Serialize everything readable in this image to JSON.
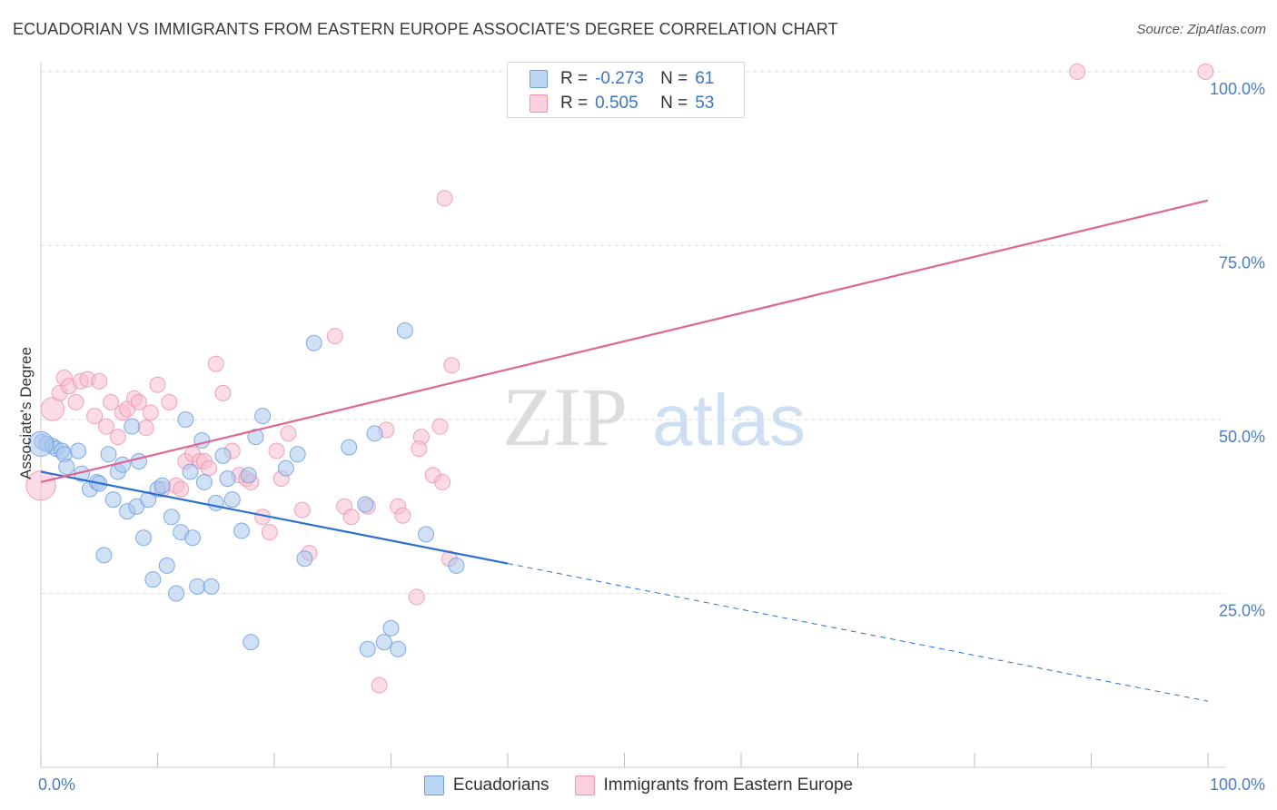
{
  "title": "ECUADORIAN VS IMMIGRANTS FROM EASTERN EUROPE ASSOCIATE'S DEGREE CORRELATION CHART",
  "source": "Source: ZipAtlas.com",
  "watermark": {
    "zip": "ZIP",
    "atlas": "atlas"
  },
  "colors": {
    "blue_fill": "#a9c8ef",
    "blue_stroke": "#6f9ee0",
    "blue_line": "#2b6fd1",
    "pink_fill": "#f7bdd0",
    "pink_stroke": "#ee94b2",
    "pink_line": "#e06591",
    "axis_text": "#4a7cc7",
    "grid": "#dddddd"
  },
  "legend": {
    "rows": [
      {
        "r_label": "R =",
        "r_value": "-0.273",
        "n_label": "N =",
        "n_value": "61"
      },
      {
        "r_label": "R =",
        "r_value": "0.505",
        "n_label": "N =",
        "n_value": "53"
      }
    ]
  },
  "chart_data": {
    "type": "scatter",
    "xlabel": "",
    "ylabel": "Associate's Degree",
    "xlim": [
      0,
      100
    ],
    "ylim": [
      0,
      100
    ],
    "x_ticks": [
      {
        "value": 0,
        "label": "0.0%"
      },
      {
        "value": 100,
        "label": "100.0%"
      }
    ],
    "y_ticks": [
      {
        "value": 25,
        "label": "25.0%"
      },
      {
        "value": 50,
        "label": "50.0%"
      },
      {
        "value": 75,
        "label": "75.0%"
      },
      {
        "value": 100,
        "label": "100.0%"
      }
    ],
    "grid": true,
    "legend_position": "bottom",
    "series": [
      {
        "name": "Ecuadorians",
        "color": "#a9c8ef",
        "trend": {
          "x0": 0,
          "y0": 42.5,
          "x_solid_end": 40,
          "x1": 100,
          "y1": 9.5
        },
        "points": [
          [
            0.1,
            46.8
          ],
          [
            0.5,
            46.5
          ],
          [
            1.0,
            46.2
          ],
          [
            1.3,
            45.8
          ],
          [
            1.8,
            45.5
          ],
          [
            2.0,
            45.0
          ],
          [
            2.2,
            43.2
          ],
          [
            3.2,
            45.5
          ],
          [
            3.5,
            42.2
          ],
          [
            4.2,
            40.0
          ],
          [
            4.8,
            41.0
          ],
          [
            5.0,
            40.8
          ],
          [
            5.4,
            30.5
          ],
          [
            5.8,
            45.0
          ],
          [
            6.2,
            38.5
          ],
          [
            6.6,
            42.5
          ],
          [
            7.0,
            43.5
          ],
          [
            7.4,
            36.8
          ],
          [
            7.8,
            49.0
          ],
          [
            8.2,
            37.5
          ],
          [
            8.4,
            44.0
          ],
          [
            8.8,
            33.0
          ],
          [
            9.2,
            38.5
          ],
          [
            9.6,
            27.0
          ],
          [
            10.0,
            40.0
          ],
          [
            10.4,
            40.5
          ],
          [
            10.8,
            29.0
          ],
          [
            11.2,
            36.0
          ],
          [
            11.6,
            25.0
          ],
          [
            12.0,
            33.8
          ],
          [
            12.4,
            50.0
          ],
          [
            12.8,
            42.5
          ],
          [
            13.0,
            33.0
          ],
          [
            13.4,
            26.0
          ],
          [
            13.8,
            47.0
          ],
          [
            14.0,
            41.0
          ],
          [
            14.6,
            26.0
          ],
          [
            15.0,
            38.0
          ],
          [
            15.6,
            44.8
          ],
          [
            16.0,
            41.5
          ],
          [
            16.4,
            38.5
          ],
          [
            17.2,
            34.0
          ],
          [
            17.8,
            42.0
          ],
          [
            18.0,
            18.0
          ],
          [
            18.4,
            47.5
          ],
          [
            19.0,
            50.5
          ],
          [
            21.0,
            43.0
          ],
          [
            22.0,
            45.0
          ],
          [
            22.6,
            30.0
          ],
          [
            23.4,
            61.0
          ],
          [
            26.4,
            46.0
          ],
          [
            27.8,
            37.8
          ],
          [
            28.0,
            17.0
          ],
          [
            28.6,
            48.0
          ],
          [
            29.4,
            18.0
          ],
          [
            30.0,
            20.0
          ],
          [
            30.6,
            17.0
          ],
          [
            31.2,
            62.8
          ],
          [
            33.0,
            33.5
          ],
          [
            35.6,
            29.0
          ],
          [
            0.0,
            46.5
          ]
        ],
        "sizes": [
          1,
          1,
          1,
          1,
          1,
          1,
          1,
          1,
          1,
          1,
          1,
          1,
          1,
          1,
          1,
          1,
          1,
          1,
          1,
          1,
          1,
          1,
          1,
          1,
          1,
          1,
          1,
          1,
          1,
          1,
          1,
          1,
          1,
          1,
          1,
          1,
          1,
          1,
          1,
          1,
          1,
          1,
          1,
          1,
          1,
          1,
          1,
          1,
          1,
          1,
          1,
          1,
          1,
          1,
          1,
          1,
          1,
          1,
          1,
          1,
          1.6
        ]
      },
      {
        "name": "Immigrants from Eastern Europe",
        "color": "#f7bdd0",
        "trend": {
          "x0": 0,
          "y0": 41.0,
          "x_solid_end": 100,
          "x1": 100,
          "y1": 81.5
        },
        "points": [
          [
            0.0,
            40.5
          ],
          [
            1.0,
            51.5
          ],
          [
            1.6,
            53.8
          ],
          [
            2.0,
            56.0
          ],
          [
            2.4,
            54.8
          ],
          [
            3.0,
            52.5
          ],
          [
            3.4,
            55.5
          ],
          [
            4.0,
            55.8
          ],
          [
            4.6,
            50.5
          ],
          [
            5.0,
            55.5
          ],
          [
            5.6,
            49.0
          ],
          [
            6.0,
            52.5
          ],
          [
            6.6,
            47.5
          ],
          [
            7.0,
            51.0
          ],
          [
            7.4,
            51.5
          ],
          [
            8.0,
            53.0
          ],
          [
            8.4,
            52.5
          ],
          [
            9.0,
            48.8
          ],
          [
            9.4,
            51.0
          ],
          [
            10.0,
            55.0
          ],
          [
            10.4,
            40.0
          ],
          [
            11.0,
            52.5
          ],
          [
            11.6,
            40.5
          ],
          [
            12.0,
            40.0
          ],
          [
            12.4,
            44.0
          ],
          [
            13.0,
            45.0
          ],
          [
            13.6,
            44.0
          ],
          [
            14.0,
            44.0
          ],
          [
            14.4,
            43.0
          ],
          [
            15.0,
            58.0
          ],
          [
            15.6,
            53.8
          ],
          [
            16.4,
            45.5
          ],
          [
            17.0,
            42.0
          ],
          [
            17.6,
            41.5
          ],
          [
            18.0,
            41.0
          ],
          [
            19.0,
            36.0
          ],
          [
            19.6,
            33.8
          ],
          [
            20.2,
            45.5
          ],
          [
            20.6,
            41.5
          ],
          [
            21.2,
            48.0
          ],
          [
            22.4,
            37.0
          ],
          [
            23.0,
            30.8
          ],
          [
            25.2,
            62.0
          ],
          [
            26.0,
            37.5
          ],
          [
            26.6,
            36.0
          ],
          [
            28.0,
            37.5
          ],
          [
            29.6,
            48.5
          ],
          [
            30.6,
            37.5
          ],
          [
            31.0,
            36.2
          ],
          [
            32.6,
            47.5
          ],
          [
            33.6,
            42.0
          ],
          [
            34.4,
            41.0
          ],
          [
            35.0,
            30.0
          ]
        ],
        "extra_points": [
          [
            29.0,
            11.8
          ],
          [
            32.2,
            24.5
          ],
          [
            32.4,
            45.8
          ],
          [
            34.2,
            49.0
          ],
          [
            35.2,
            57.8
          ],
          [
            34.6,
            81.8
          ],
          [
            88.8,
            100.0
          ],
          [
            99.8,
            100.0
          ]
        ],
        "sizes": [
          1.9,
          1.5,
          1,
          1,
          1,
          1,
          1,
          1,
          1,
          1,
          1,
          1,
          1,
          1,
          1,
          1,
          1,
          1,
          1,
          1,
          1,
          1,
          1,
          1,
          1,
          1,
          1,
          1,
          1,
          1,
          1,
          1,
          1,
          1,
          1,
          1,
          1,
          1,
          1,
          1,
          1,
          1,
          1,
          1,
          1,
          1,
          1,
          1,
          1,
          1,
          1,
          1,
          1
        ]
      }
    ]
  }
}
